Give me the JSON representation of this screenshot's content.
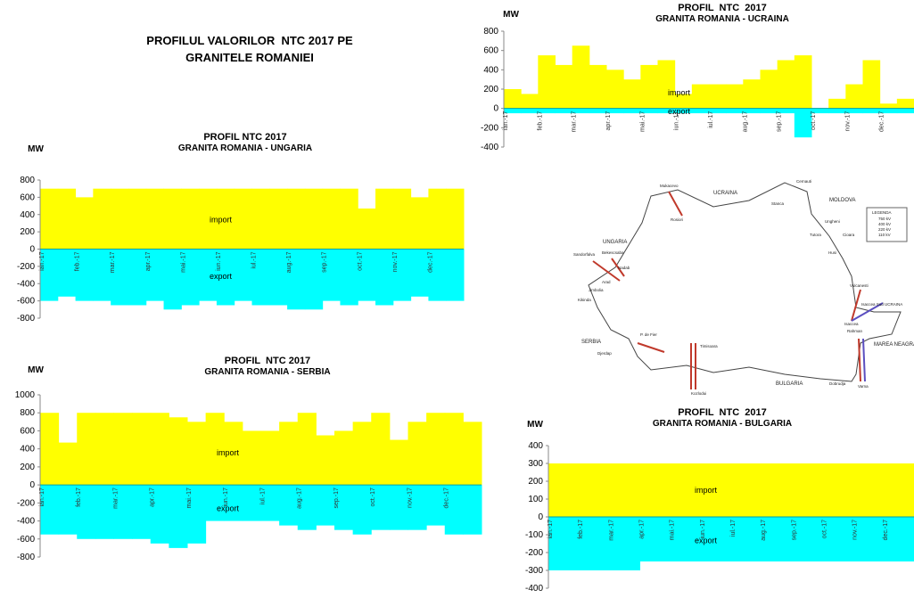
{
  "page_title": [
    "PROFILUL VALORILOR  NTC 2017 PE",
    "GRANITELE ROMANIEI"
  ],
  "chart_data": [
    {
      "type": "area",
      "title": "PROFIL NTC 2017",
      "subtitle": "GRANITA ROMANIA - UNGARIA",
      "y_label": "MW",
      "x": [
        "ian.-17",
        null,
        "feb.-17",
        null,
        "mar.-17",
        null,
        "apr.-17",
        null,
        "mai.-17",
        null,
        "iun.-17",
        null,
        "iul.-17",
        null,
        "aug.-17",
        null,
        "sep.-17",
        null,
        "oct.-17",
        null,
        "nov.-17",
        null,
        "dec.-17",
        null
      ],
      "series": [
        {
          "name": "import",
          "color": "#ffff00",
          "values": [
            700,
            700,
            600,
            700,
            700,
            700,
            700,
            700,
            700,
            700,
            700,
            700,
            700,
            700,
            700,
            700,
            700,
            700,
            470,
            700,
            700,
            600,
            700,
            700
          ]
        },
        {
          "name": "export",
          "color": "#00ffff",
          "values": [
            -600,
            -550,
            -600,
            -600,
            -650,
            -650,
            -600,
            -700,
            -650,
            -600,
            -650,
            -600,
            -650,
            -650,
            -700,
            -700,
            -600,
            -650,
            -600,
            -650,
            -600,
            -550,
            -600,
            -600
          ]
        }
      ],
      "ylim": [
        -800,
        800
      ],
      "yticks": [
        -800,
        -600,
        -400,
        -200,
        0,
        200,
        400,
        600,
        800
      ]
    },
    {
      "type": "area",
      "title": "PROFIL  NTC 2017",
      "subtitle": "GRANITA ROMANIA - SERBIA",
      "y_label": "MW",
      "x": [
        "ian.-17",
        null,
        "feb.-17",
        null,
        "mar.-17",
        null,
        "apr.-17",
        null,
        "mai.-17",
        null,
        "iun.-17",
        null,
        "iul.-17",
        null,
        "aug.-17",
        null,
        "sep.-17",
        null,
        "oct.-17",
        null,
        "nov.-17",
        null,
        "dec.-17",
        null
      ],
      "series": [
        {
          "name": "import",
          "color": "#ffff00",
          "values": [
            800,
            470,
            800,
            800,
            800,
            800,
            800,
            750,
            700,
            800,
            700,
            600,
            600,
            700,
            800,
            550,
            600,
            700,
            800,
            500,
            700,
            800,
            800,
            700
          ]
        },
        {
          "name": "export",
          "color": "#00ffff",
          "values": [
            -550,
            -550,
            -600,
            -600,
            -600,
            -600,
            -650,
            -700,
            -650,
            -400,
            -400,
            -400,
            -400,
            -450,
            -500,
            -450,
            -500,
            -550,
            -500,
            -500,
            -500,
            -450,
            -550,
            -550
          ]
        }
      ],
      "ylim": [
        -800,
        1000
      ],
      "yticks": [
        -800,
        -600,
        -400,
        -200,
        0,
        200,
        400,
        600,
        800,
        1000
      ]
    },
    {
      "type": "area",
      "title": "PROFIL  NTC  2017",
      "subtitle": "GRANITA ROMANIA - UCRAINA",
      "y_label": "MW",
      "x": [
        "ian.-17",
        null,
        "feb.-17",
        null,
        "mar.-17",
        null,
        "apr.-17",
        null,
        "mai.-17",
        null,
        "iun.-17",
        null,
        "iul.-17",
        null,
        "aug.-17",
        null,
        "sep.-17",
        null,
        "oct.-17",
        null,
        "nov.-17",
        null,
        "dec.-17",
        null
      ],
      "series": [
        {
          "name": "import",
          "color": "#ffff00",
          "values": [
            200,
            150,
            550,
            450,
            650,
            450,
            400,
            300,
            450,
            500,
            150,
            250,
            250,
            250,
            300,
            400,
            500,
            550,
            0,
            100,
            250,
            500,
            50,
            100
          ]
        },
        {
          "name": "export",
          "color": "#00ffff",
          "values": [
            -50,
            -50,
            -50,
            -50,
            -50,
            -50,
            -50,
            -50,
            -50,
            -50,
            -50,
            -50,
            -50,
            -50,
            -50,
            -50,
            -50,
            -300,
            -50,
            -50,
            -50,
            -50,
            -50,
            -50
          ]
        }
      ],
      "ylim": [
        -400,
        800
      ],
      "yticks": [
        -400,
        -200,
        0,
        200,
        400,
        600,
        800
      ]
    },
    {
      "type": "area",
      "title": "PROFIL  NTC  2017",
      "subtitle": "GRANITA ROMANIA - BULGARIA",
      "y_label": "MW",
      "x": [
        "ian.-17",
        null,
        "feb.-17",
        null,
        "mar.-17",
        null,
        "apr.-17",
        null,
        "mai.-17",
        null,
        "iun.-17",
        null,
        "iul.-17",
        null,
        "aug.-17",
        null,
        "sep.-17",
        null,
        "oct.-17",
        null,
        "nov.-17",
        null,
        "dec.-17",
        null
      ],
      "series": [
        {
          "name": "import",
          "color": "#ffff00",
          "values": [
            300,
            300,
            300,
            300,
            300,
            300,
            300,
            300,
            300,
            300,
            300,
            300,
            300,
            300,
            300,
            300,
            300,
            300,
            300,
            300,
            300,
            300,
            300,
            300
          ]
        },
        {
          "name": "export",
          "color": "#00ffff",
          "values": [
            -300,
            -300,
            -300,
            -300,
            -300,
            -300,
            -250,
            -250,
            -250,
            -250,
            -250,
            -250,
            -250,
            -250,
            -250,
            -250,
            -250,
            -250,
            -250,
            -250,
            -250,
            -250,
            -250,
            -250
          ]
        }
      ],
      "ylim": [
        -400,
        400
      ],
      "yticks": [
        -400,
        -300,
        -200,
        -100,
        0,
        100,
        200,
        300,
        400
      ]
    }
  ],
  "map": {
    "labels": [
      "Mukacevo",
      "Rosiori",
      "UCRAINA",
      "Cernauti",
      "Stanca",
      "MOLDOVA",
      "Ungheni",
      "Tutora",
      "Husi",
      "Cioara",
      "LEGENDA",
      "750 kV",
      "400 kV",
      "220 kV",
      "110 kV",
      "UNGARIA",
      "Sandorfalva",
      "Bekescsaba",
      "Nadab",
      "Arad",
      "Jimbolia",
      "Kikinda",
      "Vulcanesti",
      "Isaccea Sud UCRAINA",
      "Isaccea",
      "SERBIA",
      "P. de Fier",
      "Djerdap",
      "Timisoara",
      "Kozlodui",
      "BULGARIA",
      "Dobrudja",
      "Varna",
      "MAREA NEAGRA",
      "Rahman"
    ]
  }
}
